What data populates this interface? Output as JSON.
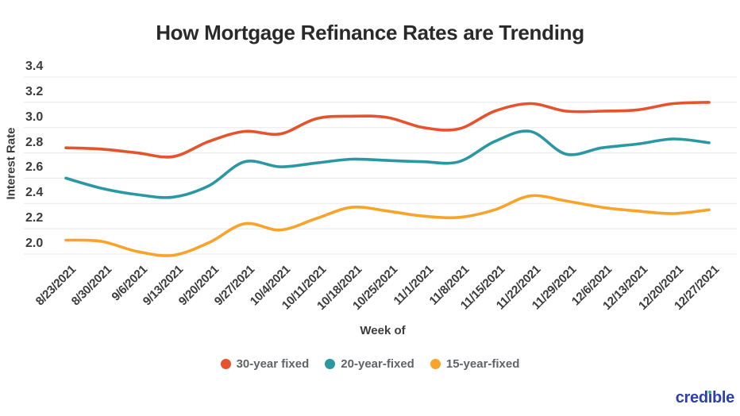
{
  "title": "How Mortgage Refinance Rates are Trending",
  "brand": {
    "logo_text": "credible",
    "logo_color": "#2c3fb0",
    "logo_dot_color": "#2eb67d"
  },
  "colors": {
    "grid": "#e8e8e8",
    "tick_text": "#3c3c3c",
    "legend_text": "#5f6468"
  },
  "chart_data": {
    "type": "line",
    "title": "How Mortgage Refinance Rates are Trending",
    "xlabel": "Week of",
    "ylabel": "Interest Rate",
    "ylim": [
      2.0,
      3.4
    ],
    "yticks": [
      "2.0",
      "2.2",
      "2.4",
      "2.6",
      "2.8",
      "3.0",
      "3.2",
      "3.4"
    ],
    "grid": true,
    "legend_position": "bottom",
    "line_style": "smooth",
    "categories": [
      "8/23/2021",
      "8/30/2021",
      "9/6/2021",
      "9/13/2021",
      "9/20/2021",
      "9/27/2021",
      "10/4/2021",
      "10/11/2021",
      "10/18/2021",
      "10/25/2021",
      "11/1/2021",
      "11/8/2021",
      "11/15/2021",
      "11/22/2021",
      "11/29/2021",
      "12/6/2021",
      "12/13/2021",
      "12/20/2021",
      "12/27/2021"
    ],
    "series": [
      {
        "name": "30-year fixed",
        "color": "#e5532c",
        "values": [
          2.84,
          2.83,
          2.8,
          2.77,
          2.89,
          2.97,
          2.95,
          3.07,
          3.09,
          3.08,
          3.0,
          2.99,
          3.13,
          3.19,
          3.13,
          3.13,
          3.14,
          3.19,
          3.2
        ]
      },
      {
        "name": "20-year-fixed",
        "color": "#2b97a3",
        "values": [
          2.6,
          2.52,
          2.47,
          2.45,
          2.54,
          2.73,
          2.69,
          2.72,
          2.75,
          2.74,
          2.73,
          2.73,
          2.89,
          2.97,
          2.79,
          2.84,
          2.87,
          2.91,
          2.88
        ]
      },
      {
        "name": "15-year-fixed",
        "color": "#f9a32a",
        "values": [
          2.11,
          2.1,
          2.02,
          1.99,
          2.09,
          2.24,
          2.19,
          2.28,
          2.37,
          2.34,
          2.3,
          2.29,
          2.35,
          2.46,
          2.42,
          2.37,
          2.34,
          2.32,
          2.35
        ]
      }
    ]
  }
}
